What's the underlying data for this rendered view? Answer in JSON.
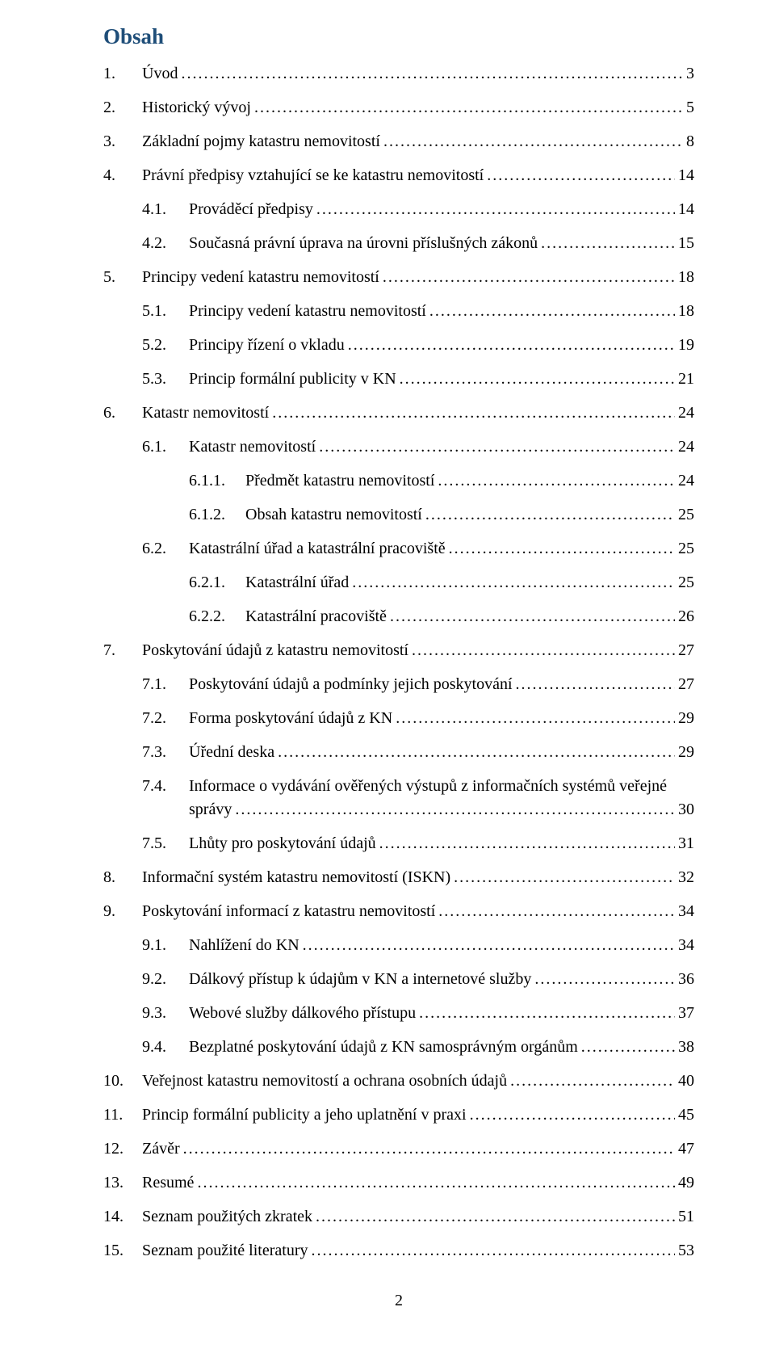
{
  "title": "Obsah",
  "page_number": "2",
  "colors": {
    "title": "#1f4e79",
    "text": "#000000",
    "background": "#ffffff"
  },
  "entries": [
    {
      "indent": 0,
      "num": "1.",
      "label": "Úvod",
      "page": "3"
    },
    {
      "indent": 0,
      "num": "2.",
      "label": "Historický vývoj",
      "page": "5"
    },
    {
      "indent": 0,
      "num": "3.",
      "label": "Základní pojmy katastru nemovitostí",
      "page": "8"
    },
    {
      "indent": 0,
      "num": "4.",
      "label": "Právní předpisy vztahující se ke katastru nemovitostí",
      "page": "14"
    },
    {
      "indent": 1,
      "num": "4.1.",
      "label": "Prováděcí předpisy",
      "page": "14"
    },
    {
      "indent": 1,
      "num": "4.2.",
      "label": "Současná právní úprava na úrovni příslušných zákonů",
      "page": "15"
    },
    {
      "indent": 0,
      "num": "5.",
      "label": "Principy vedení katastru nemovitostí",
      "page": "18"
    },
    {
      "indent": 1,
      "num": "5.1.",
      "label": "Principy vedení katastru nemovitostí",
      "page": "18"
    },
    {
      "indent": 1,
      "num": "5.2.",
      "label": "Principy řízení o vkladu",
      "page": "19"
    },
    {
      "indent": 1,
      "num": "5.3.",
      "label": "Princip formální publicity v KN",
      "page": "21"
    },
    {
      "indent": 0,
      "num": "6.",
      "label": "Katastr nemovitostí",
      "page": "24"
    },
    {
      "indent": 1,
      "num": "6.1.",
      "label": "Katastr nemovitostí",
      "page": "24"
    },
    {
      "indent": 2,
      "num": "6.1.1.",
      "label": "Předmět katastru nemovitostí",
      "page": "24"
    },
    {
      "indent": 2,
      "num": "6.1.2.",
      "label": "Obsah katastru nemovitostí",
      "page": "25"
    },
    {
      "indent": 1,
      "num": "6.2.",
      "label": "Katastrální úřad a katastrální pracoviště",
      "page": "25"
    },
    {
      "indent": 2,
      "num": "6.2.1.",
      "label": "Katastrální úřad",
      "page": "25"
    },
    {
      "indent": 2,
      "num": "6.2.2.",
      "label": "Katastrální pracoviště",
      "page": "26"
    },
    {
      "indent": 0,
      "num": "7.",
      "label": "Poskytování údajů z katastru nemovitostí",
      "page": "27"
    },
    {
      "indent": 1,
      "num": "7.1.",
      "label": "Poskytování údajů a podmínky jejich poskytování",
      "page": "27"
    },
    {
      "indent": 1,
      "num": "7.2.",
      "label": "Forma poskytování údajů z KN",
      "page": "29"
    },
    {
      "indent": 1,
      "num": "7.3.",
      "label": "Úřední deska",
      "page": "29"
    },
    {
      "indent": 1,
      "num": "7.4.",
      "label_line1": "Informace o vydávání ověřených výstupů z informačních systémů veřejné",
      "label_line2": "správy",
      "page": "30",
      "multiline": true
    },
    {
      "indent": 1,
      "num": "7.5.",
      "label": "Lhůty pro poskytování údajů",
      "page": "31"
    },
    {
      "indent": 0,
      "num": "8.",
      "label": "Informační systém katastru nemovitostí (ISKN)",
      "page": "32"
    },
    {
      "indent": 0,
      "num": "9.",
      "label": "Poskytování informací z katastru nemovitostí",
      "page": "34"
    },
    {
      "indent": 1,
      "num": "9.1.",
      "label": "Nahlížení do KN",
      "page": "34"
    },
    {
      "indent": 1,
      "num": "9.2.",
      "label": "Dálkový přístup k údajům v KN a internetové služby",
      "page": "36"
    },
    {
      "indent": 1,
      "num": "9.3.",
      "label": "Webové služby dálkového přístupu",
      "page": "37"
    },
    {
      "indent": 1,
      "num": "9.4.",
      "label": "Bezplatné poskytování údajů z KN samosprávným orgánům",
      "page": "38"
    },
    {
      "indent": 0,
      "num": "10.",
      "label": "Veřejnost katastru nemovitostí a ochrana osobních údajů",
      "page": "40"
    },
    {
      "indent": 0,
      "num": "11.",
      "label": "Princip formální publicity a jeho uplatnění v praxi",
      "page": "45"
    },
    {
      "indent": 0,
      "num": "12.",
      "label": "Závěr",
      "page": "47"
    },
    {
      "indent": 0,
      "num": "13.",
      "label": "Resumé",
      "page": "49"
    },
    {
      "indent": 0,
      "num": "14.",
      "label": "Seznam použitých zkratek",
      "page": "51"
    },
    {
      "indent": 0,
      "num": "15.",
      "label": "Seznam použité literatury",
      "page": "53"
    }
  ]
}
